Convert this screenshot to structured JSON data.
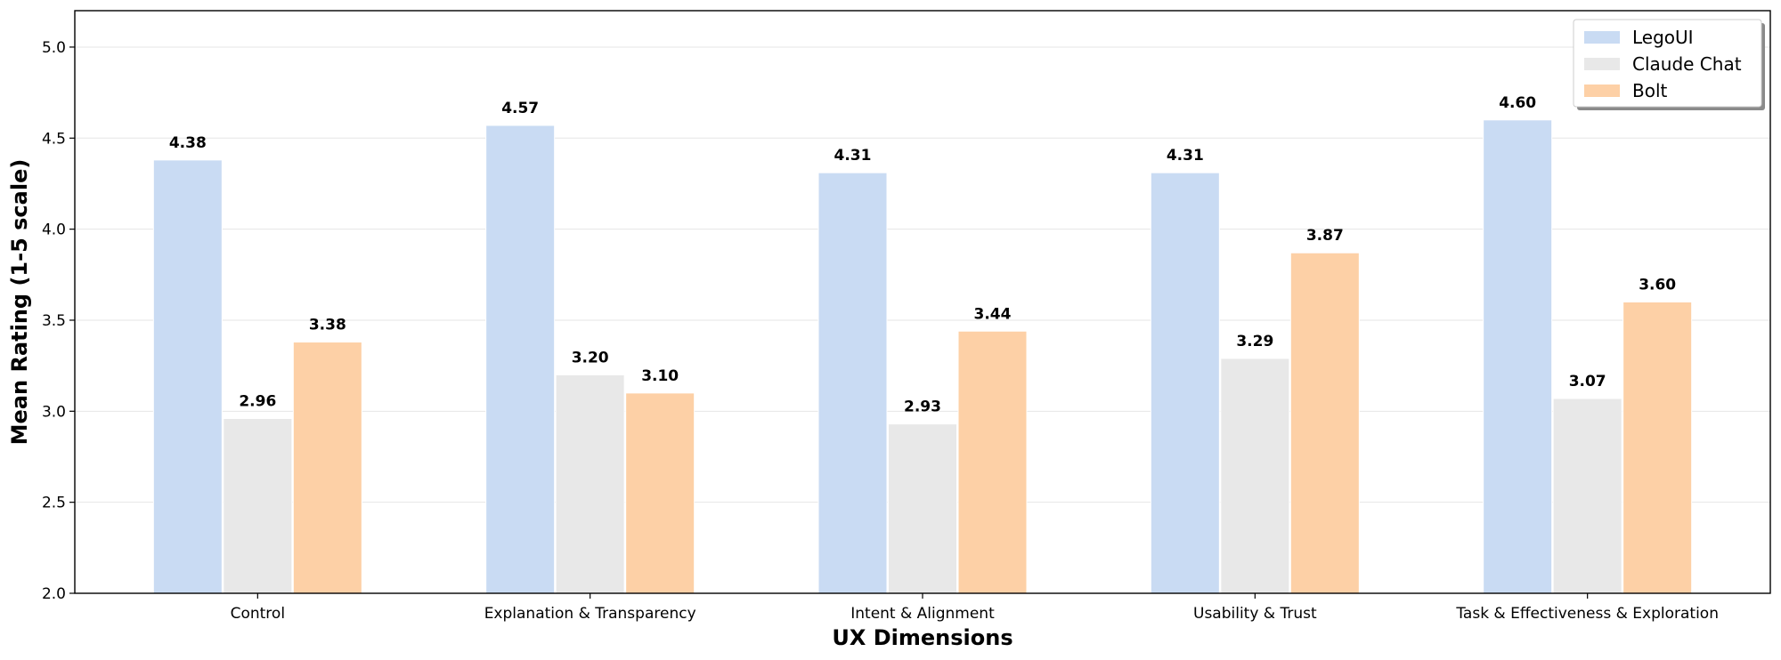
{
  "chart_data": {
    "type": "bar",
    "title": "",
    "xlabel": "UX Dimensions",
    "ylabel": "Mean Rating (1-5 scale)",
    "ylim": [
      2.0,
      5.2
    ],
    "yticks": [
      2.0,
      2.5,
      3.0,
      3.5,
      4.0,
      4.5,
      5.0
    ],
    "grid": "horizontal",
    "legend_position": "top-right",
    "categories": [
      "Control",
      "Explanation & Transparency",
      "Intent & Alignment",
      "Usability & Trust",
      "Task & Effectiveness & Exploration"
    ],
    "series": [
      {
        "name": "LegoUI",
        "color": "#c9dbf3",
        "values": [
          4.38,
          4.57,
          4.31,
          4.31,
          4.6
        ]
      },
      {
        "name": "Claude Chat",
        "color": "#e8e8e8",
        "values": [
          2.96,
          3.2,
          2.93,
          3.29,
          3.07
        ]
      },
      {
        "name": "Bolt",
        "color": "#fdd0a6",
        "values": [
          3.38,
          3.1,
          3.44,
          3.87,
          3.6
        ]
      }
    ]
  }
}
